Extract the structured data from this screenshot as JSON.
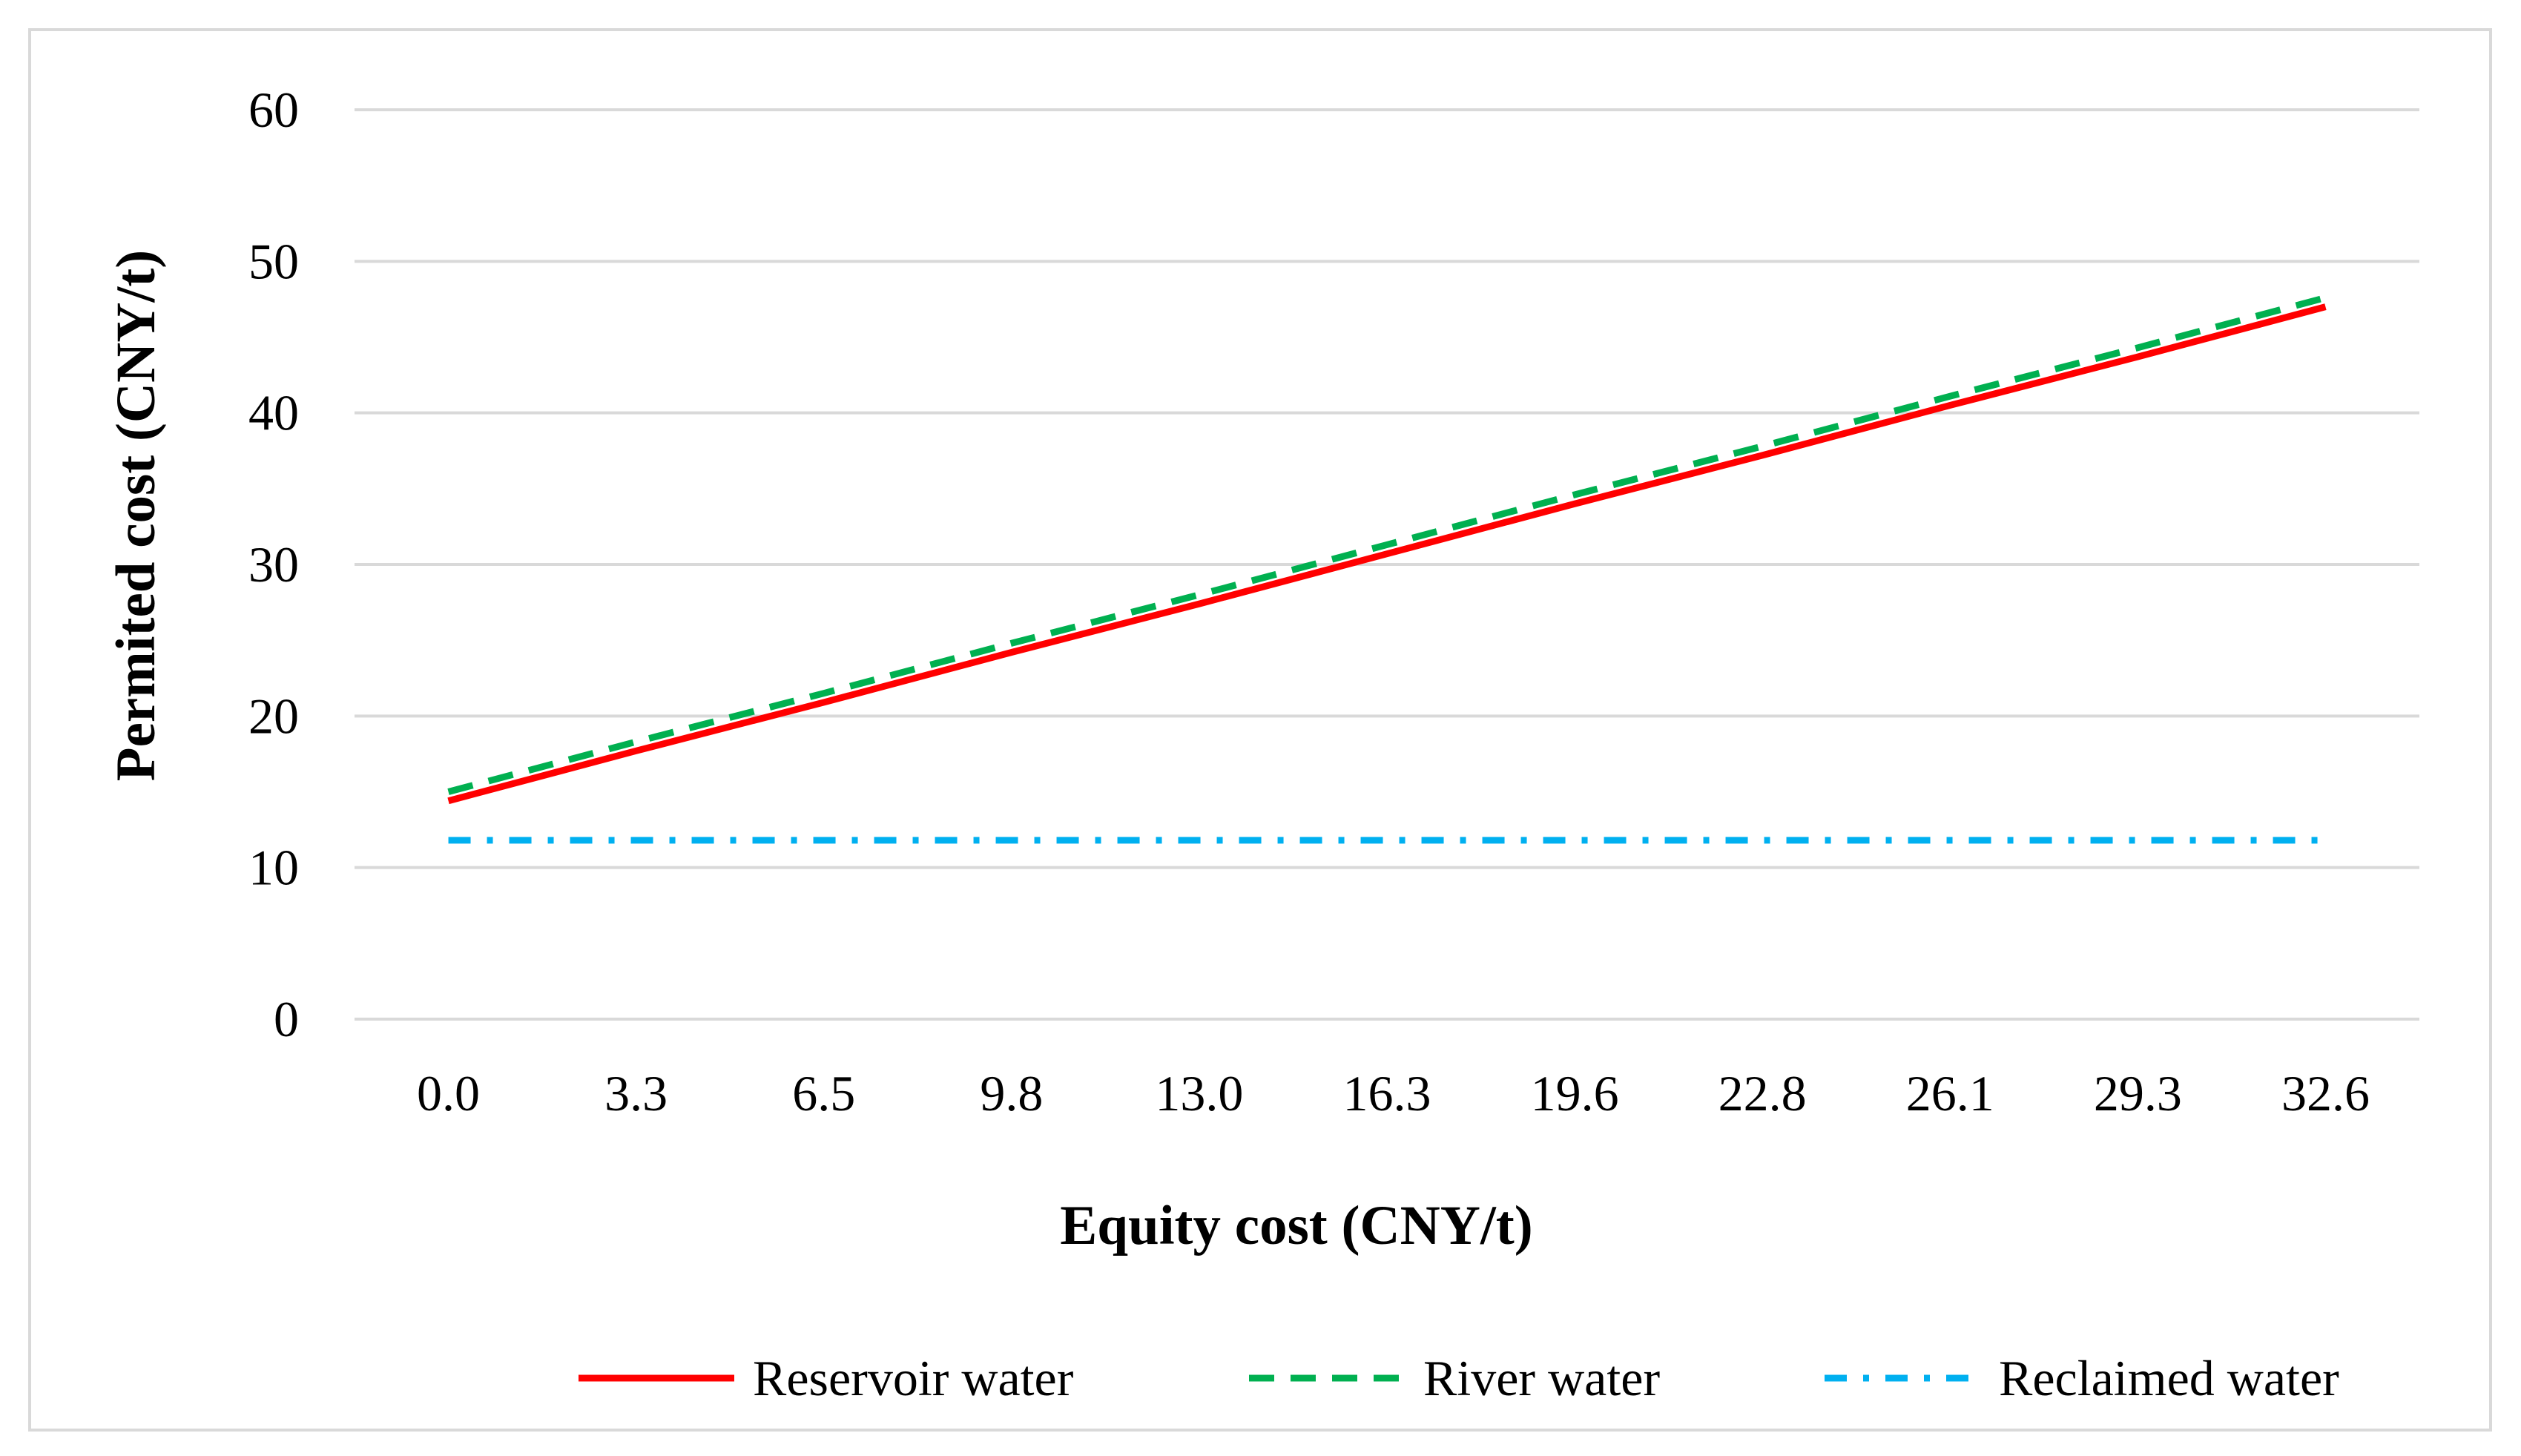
{
  "chart_data": {
    "type": "line",
    "title": "",
    "xlabel": "Equity cost (CNY/t)",
    "ylabel": "Permited cost (CNY/t)",
    "ylim": [
      0,
      60
    ],
    "yticks": [
      "0",
      "10",
      "20",
      "30",
      "40",
      "50",
      "60"
    ],
    "categories": [
      "0.0",
      "3.3",
      "6.5",
      "9.8",
      "13.0",
      "16.3",
      "19.6",
      "22.8",
      "26.1",
      "29.3",
      "32.6"
    ],
    "grid": true,
    "legend_position": "bottom-right",
    "series": [
      {
        "name": "Reservoir water",
        "color": "#FF0000",
        "style": "solid",
        "values": [
          14.4,
          17.7,
          20.9,
          24.2,
          27.4,
          30.7,
          34.0,
          37.2,
          40.5,
          43.7,
          47.0
        ]
      },
      {
        "name": "River water",
        "color": "#00B050",
        "style": "dashed",
        "values": [
          15.0,
          18.3,
          21.5,
          24.8,
          28.0,
          31.3,
          34.6,
          37.8,
          41.1,
          44.3,
          47.6
        ]
      },
      {
        "name": "Reclaimed water",
        "color": "#00B0F0",
        "style": "dash-dot",
        "values": [
          11.8,
          11.8,
          11.8,
          11.8,
          11.8,
          11.8,
          11.8,
          11.8,
          11.8,
          11.8,
          11.8
        ]
      }
    ]
  }
}
